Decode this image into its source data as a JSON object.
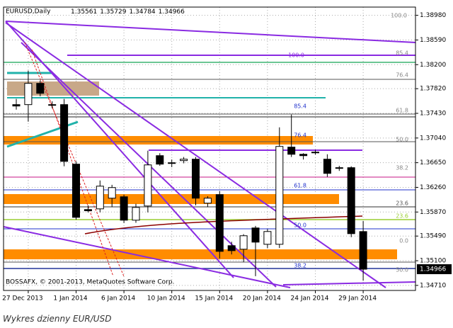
{
  "chart_data": {
    "type": "candlestick",
    "symbol": "EURUSD,Daily",
    "watermark": "BOSSAFX, © 2001-2013, MetaQuotes Software Corp.",
    "categories": [
      null,
      "27 Dec 2013",
      null,
      null,
      null,
      "1 Jan 2014",
      null,
      null,
      null,
      "6 Jan 2014",
      null,
      null,
      null,
      "10 Jan 2014",
      null,
      null,
      null,
      "15 Jan 2014",
      null,
      null,
      null,
      "20 Jan 2014",
      null,
      null,
      null,
      "24 Jan 2014",
      null,
      null,
      null,
      "29 Jan 2014"
    ],
    "open": [
      1.37568,
      1.37568,
      1.37904,
      1.37568,
      1.37568,
      1.36627,
      1.35909,
      1.3592,
      1.36089,
      1.36111,
      1.35741,
      1.35965,
      1.36761,
      1.36649,
      1.36683,
      1.36705,
      1.3601,
      1.36145,
      1.35338,
      1.35282,
      1.35618,
      1.3536,
      1.3536,
      1.36896,
      1.36783,
      1.36817,
      1.36705,
      1.36571,
      1.36571,
      1.35561
    ],
    "high": [
      1.37658,
      1.38106,
      1.3795,
      1.3762,
      1.37658,
      1.36671,
      1.35977,
      1.36369,
      1.363,
      1.36145,
      1.36,
      1.3684,
      1.368,
      1.367,
      1.3674,
      1.36739,
      1.3612,
      1.36201,
      1.354,
      1.3552,
      1.3565,
      1.356,
      1.37209,
      1.37411,
      1.368,
      1.3685,
      1.36783,
      1.366,
      1.36593,
      1.35729
    ],
    "low": [
      1.37489,
      1.37299,
      1.377,
      1.3751,
      1.36593,
      1.35752,
      1.35864,
      1.35864,
      1.3595,
      1.35696,
      1.357,
      1.35864,
      1.366,
      1.3658,
      1.3664,
      1.35977,
      1.3595,
      1.35136,
      1.352,
      1.3508,
      1.34856,
      1.353,
      1.353,
      1.3674,
      1.367,
      1.3678,
      1.36425,
      1.3652,
      1.35473,
      1.34784
    ],
    "close": [
      1.37546,
      1.37904,
      1.37747,
      1.37568,
      1.36671,
      1.35786,
      1.3589,
      1.36279,
      1.36257,
      1.35741,
      1.35943,
      1.36615,
      1.36627,
      1.3664,
      1.36705,
      1.36089,
      1.36089,
      1.35248,
      1.35259,
      1.35495,
      1.35394,
      1.35562,
      1.36907,
      1.36783,
      1.36761,
      1.3681,
      1.36481,
      1.3656,
      1.35528,
      1.34966
    ],
    "ylim": [
      1.3463,
      1.3911
    ],
    "yticks": [
      {
        "value": 1.3898,
        "label": "1.38980"
      },
      {
        "value": 1.3859,
        "label": "1.38590"
      },
      {
        "value": 1.382,
        "label": "1.38200"
      },
      {
        "value": 1.3782,
        "label": "1.37820"
      },
      {
        "value": 1.3743,
        "label": "1.37430"
      },
      {
        "value": 1.3704,
        "label": "1.37040"
      },
      {
        "value": 1.3665,
        "label": "1.36650"
      },
      {
        "value": 1.3626,
        "label": "1.36260"
      },
      {
        "value": 1.3587,
        "label": "1.35870"
      },
      {
        "value": 1.3549,
        "label": "1.35490"
      },
      {
        "value": 1.351,
        "label": "1.35100"
      },
      {
        "value": 1.3471,
        "label": "1.34710"
      }
    ],
    "grid": true,
    "bull_color": "#ffffff",
    "bear_color": "#000000",
    "annotations": [
      "100.0",
      "85.4",
      "100.0",
      "76.4",
      "85.4",
      "61.8",
      "50.0",
      "76.4",
      "38.2",
      "61.8",
      "23.6",
      "50.0",
      "23.6",
      "0.0",
      "38.2",
      "50.0"
    ]
  },
  "caption": "Wykres dzienny EUR/USD"
}
